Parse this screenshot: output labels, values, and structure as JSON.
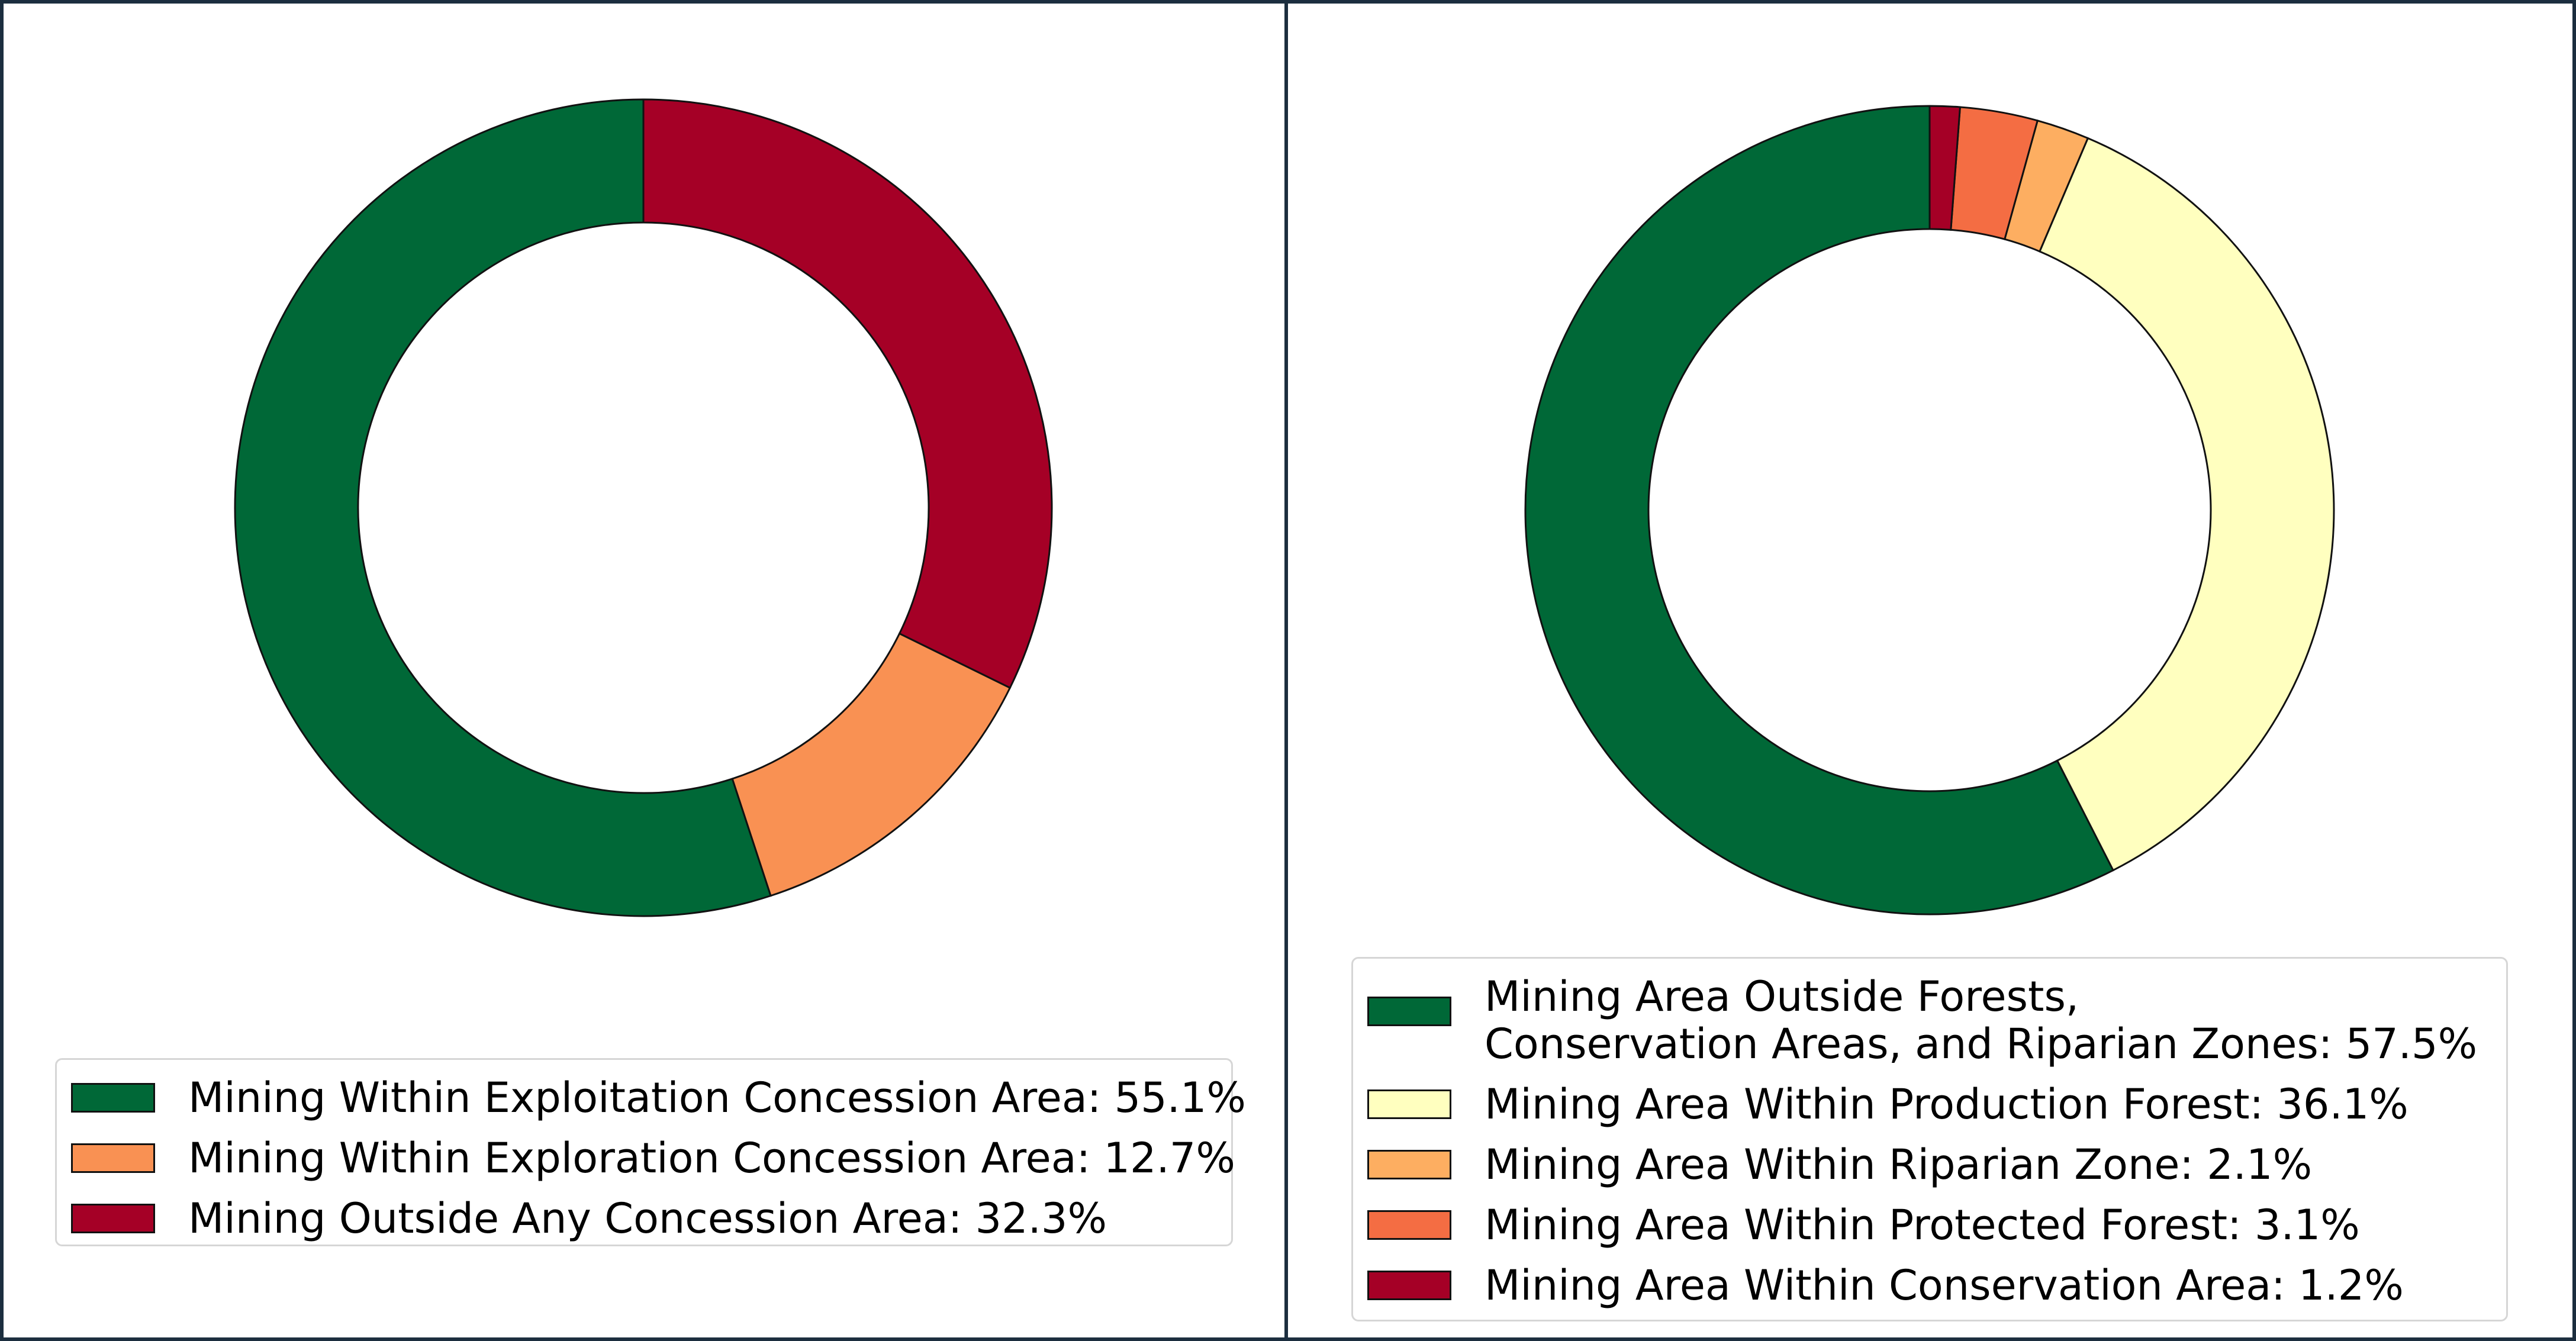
{
  "chart_data": [
    {
      "type": "pie",
      "title": "",
      "slices": [
        {
          "label": "Mining Within Exploitation Concession Area: 55.1%",
          "value": 55.1,
          "color": "#006837"
        },
        {
          "label": "Mining Within Exploration Concession Area: 12.7%",
          "value": 12.7,
          "color": "#f99153"
        },
        {
          "label": "Mining Outside Any Concession Area: 32.3%",
          "value": 32.3,
          "color": "#a50026"
        }
      ],
      "legend_placement": "bottom-center"
    },
    {
      "type": "pie",
      "title": "",
      "slices": [
        {
          "label": "Mining Area Outside Forests,\nConservation Areas, and Riparian Zones: 57.5%",
          "value": 57.5,
          "color": "#006837"
        },
        {
          "label": "Mining Area Within Production Forest: 36.1%",
          "value": 36.1,
          "color": "#ffffbf"
        },
        {
          "label": "Mining Area Within Riparian Zone: 2.1%",
          "value": 2.1,
          "color": "#fdae61"
        },
        {
          "label": "Mining Area Within Protected Forest: 3.1%",
          "value": 3.1,
          "color": "#f46d43"
        },
        {
          "label": "Mining Area Within Conservation Area: 1.2%",
          "value": 1.2,
          "color": "#a50026"
        }
      ],
      "legend_placement": "bottom-center"
    }
  ]
}
